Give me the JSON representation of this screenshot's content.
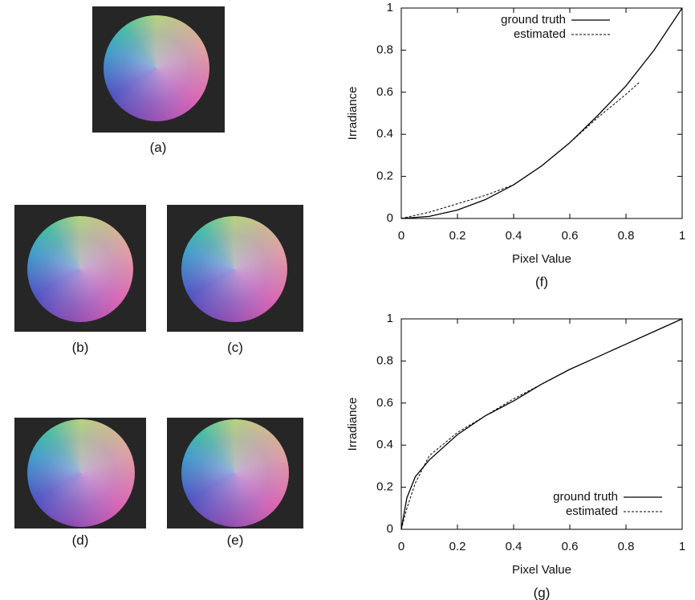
{
  "images": [
    {
      "label": "(a)"
    },
    {
      "label": "(b)"
    },
    {
      "label": "(c)"
    },
    {
      "label": "(d)"
    },
    {
      "label": "(e)"
    }
  ],
  "chart_data": [
    {
      "type": "line",
      "caption": "(f)",
      "x_label": "Pixel Value",
      "y_label": "Irradiance",
      "xlim": [
        0,
        1
      ],
      "ylim": [
        0,
        1
      ],
      "xticks": [
        0,
        0.2,
        0.4,
        0.6,
        0.8,
        1
      ],
      "yticks": [
        0,
        0.2,
        0.4,
        0.6,
        0.8,
        1
      ],
      "legend": "top-center",
      "series": [
        {
          "name": "ground truth",
          "color": "#000000",
          "style": "solid",
          "x": [
            0,
            0.1,
            0.2,
            0.3,
            0.4,
            0.5,
            0.6,
            0.7,
            0.8,
            0.9,
            1
          ],
          "values": [
            0,
            0.01,
            0.04,
            0.09,
            0.16,
            0.25,
            0.36,
            0.49,
            0.63,
            0.8,
            1
          ]
        },
        {
          "name": "estimated",
          "color": "#000000",
          "style": "dashed",
          "x": [
            0,
            0.1,
            0.2,
            0.3,
            0.4,
            0.5,
            0.6,
            0.7,
            0.8,
            0.85
          ],
          "values": [
            0,
            0.03,
            0.07,
            0.11,
            0.16,
            0.25,
            0.36,
            0.48,
            0.59,
            0.65
          ]
        }
      ]
    },
    {
      "type": "line",
      "caption": "(g)",
      "x_label": "Pixel Value",
      "y_label": "Irradiance",
      "xlim": [
        0,
        1
      ],
      "ylim": [
        0,
        1
      ],
      "xticks": [
        0,
        0.2,
        0.4,
        0.6,
        0.8,
        1
      ],
      "yticks": [
        0,
        0.2,
        0.4,
        0.6,
        0.8,
        1
      ],
      "legend": "bottom-right",
      "series": [
        {
          "name": "ground truth",
          "color": "#000000",
          "style": "solid",
          "x": [
            0,
            0.02,
            0.05,
            0.1,
            0.2,
            0.3,
            0.4,
            0.5,
            0.6,
            0.7,
            0.8,
            0.9,
            1
          ],
          "values": [
            0,
            0.15,
            0.25,
            0.33,
            0.45,
            0.54,
            0.61,
            0.69,
            0.76,
            0.82,
            0.88,
            0.94,
            1
          ]
        },
        {
          "name": "estimated",
          "color": "#000000",
          "style": "dashed",
          "x": [
            0,
            0.02,
            0.05,
            0.1,
            0.2,
            0.3,
            0.4,
            0.5,
            0.6
          ],
          "values": [
            0,
            0.1,
            0.22,
            0.35,
            0.46,
            0.54,
            0.62,
            0.69,
            0.76
          ]
        }
      ]
    }
  ]
}
